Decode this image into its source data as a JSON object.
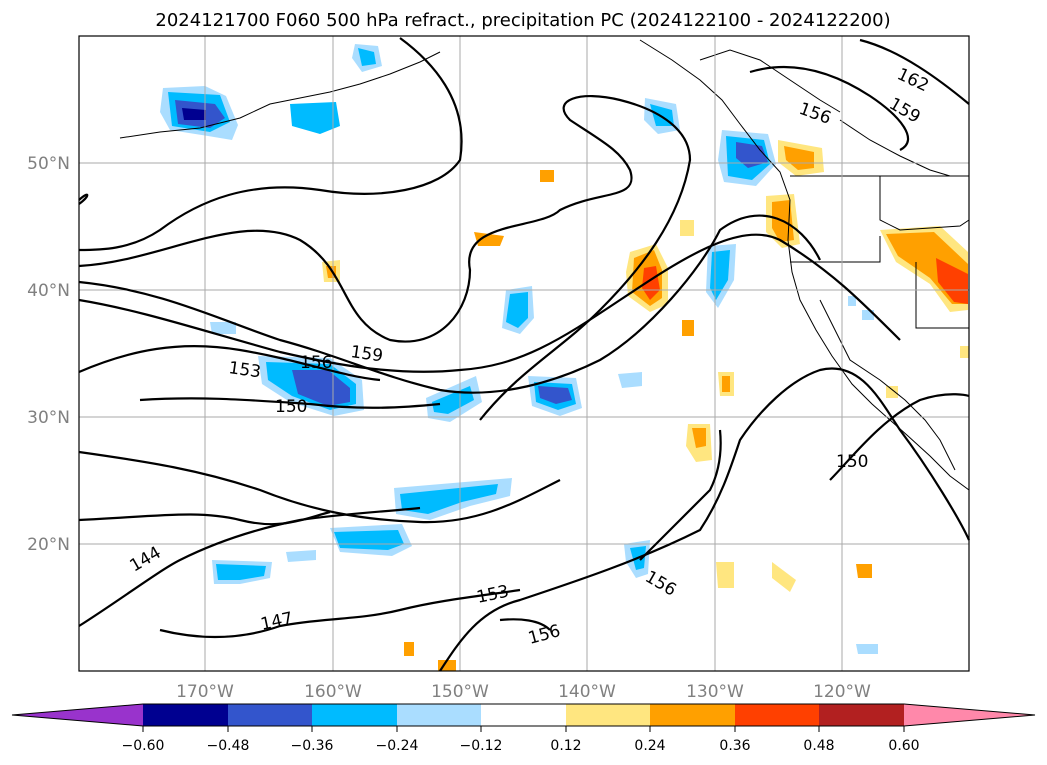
{
  "title": "2024121700 F060 500 hPa refract., precipitation PC (2024122100 - 2024122200)",
  "lat_labels": [
    "50°N",
    "40°N",
    "30°N",
    "20°N"
  ],
  "lon_labels": [
    "170°W",
    "160°W",
    "150°W",
    "140°W",
    "130°W",
    "120°W"
  ],
  "contour_labels": [
    "162",
    "159",
    "156",
    "159",
    "156",
    "153",
    "150",
    "150",
    "144",
    "147",
    "153",
    "156",
    "156"
  ],
  "colorbar": {
    "ticks": [
      "−0.60",
      "−0.48",
      "−0.36",
      "−0.24",
      "−0.12",
      "0.12",
      "0.24",
      "0.36",
      "0.48",
      "0.60"
    ],
    "colors": [
      "#9933cc",
      "#000090",
      "#3355cc",
      "#00bbff",
      "#aaddff",
      "#ffffff",
      "#ffe680",
      "#ffa000",
      "#ff4000",
      "#b22020",
      "#ff88aa"
    ]
  }
}
